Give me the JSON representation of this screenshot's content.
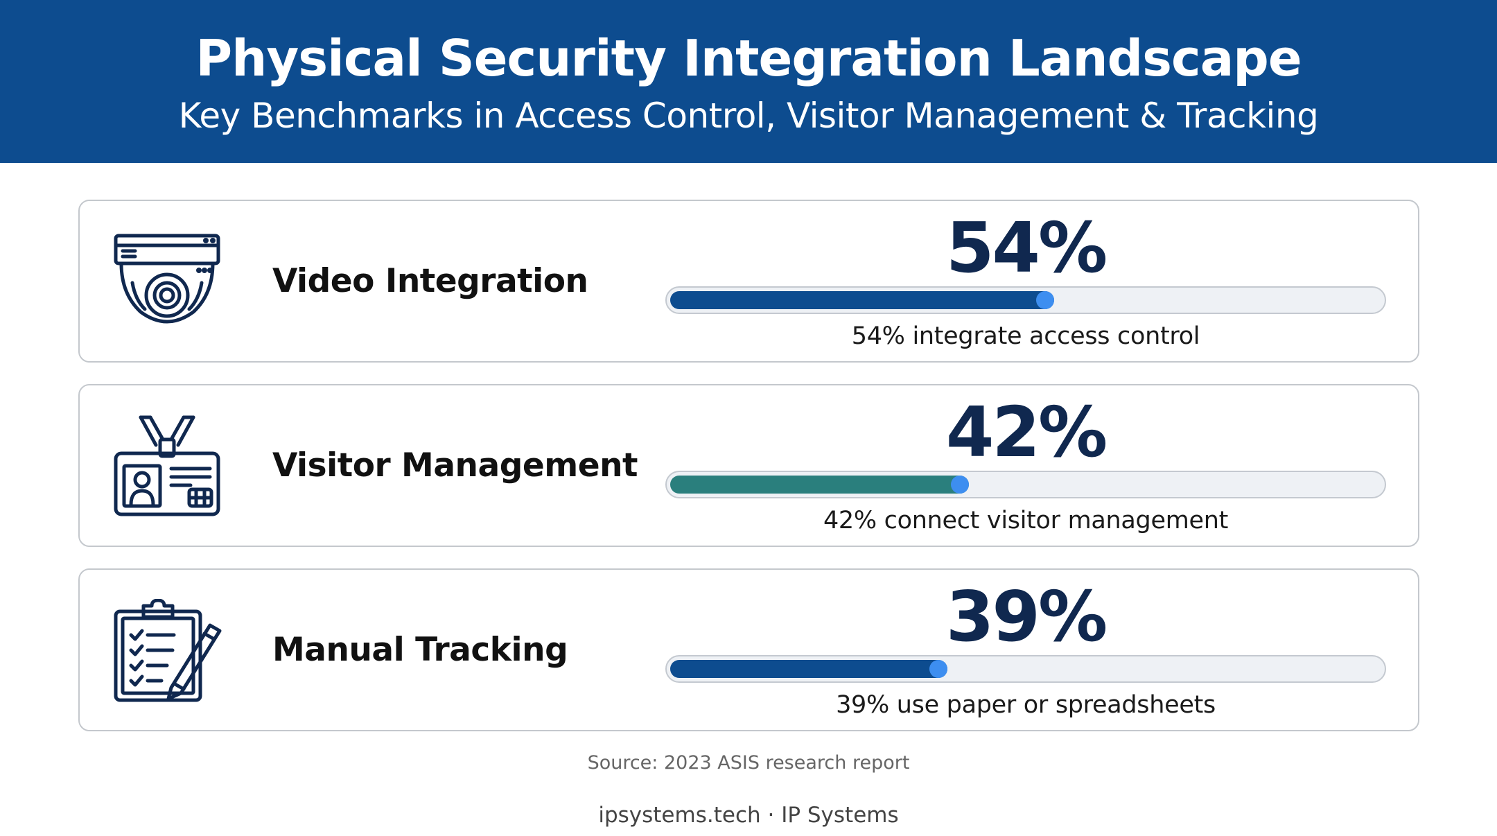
{
  "header": {
    "title": "Physical Security Integration Landscape",
    "subtitle": "Key Benchmarks in Access Control, Visitor Management & Tracking"
  },
  "chart_data": {
    "type": "bar",
    "categories": [
      "Video Integration",
      "Visitor Management",
      "Manual Tracking"
    ],
    "values": [
      54,
      42,
      39
    ],
    "value_labels": [
      "54%",
      "42%",
      "39%"
    ],
    "descriptions": [
      "54% integrate access control",
      "42% connect visitor management",
      "39% use paper or spreadsheets"
    ],
    "icons": [
      "dome-camera-icon",
      "visitor-badge-icon",
      "clipboard-checklist-icon"
    ],
    "bar_colors": [
      "#0d4c8f",
      "#2a7f7d",
      "#0d4c8f"
    ],
    "knob_color": "#3d8ef0",
    "ylim": [
      0,
      100
    ],
    "grid": false,
    "legend": "none"
  },
  "source": "Source: 2023 ASIS research report",
  "footer": "ipsystems.tech · IP Systems"
}
